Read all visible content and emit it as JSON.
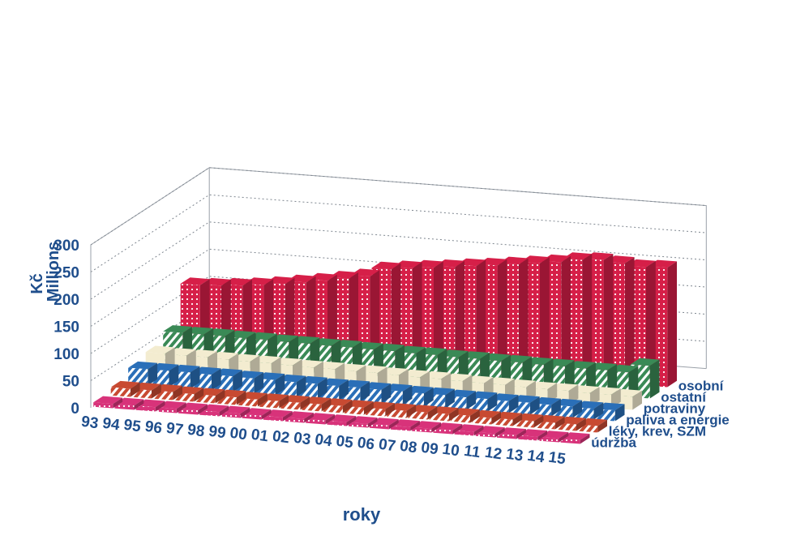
{
  "chart_data": {
    "type": "bar",
    "variant": "3d-stacked-rows",
    "title": "",
    "ylabel": "Kč Millions",
    "ylabel_lines": [
      "Kč",
      "Millions"
    ],
    "xlabel": "roky",
    "ylim": [
      0,
      300
    ],
    "yticks": [
      0,
      50,
      100,
      150,
      200,
      250,
      300
    ],
    "grid": true,
    "categories": [
      "93",
      "94",
      "95",
      "96",
      "97",
      "98",
      "99",
      "00",
      "01",
      "02",
      "03",
      "04",
      "05",
      "06",
      "07",
      "08",
      "09",
      "10",
      "11",
      "12",
      "13",
      "14",
      "15"
    ],
    "series": [
      {
        "name": "údržba",
        "color": "#d8337a",
        "pattern": "dots",
        "values": [
          8,
          8,
          8,
          8,
          8,
          8,
          8,
          7,
          7,
          7,
          7,
          7,
          7,
          7,
          7,
          7,
          7,
          7,
          7,
          7,
          7,
          7,
          7
        ]
      },
      {
        "name": "léky, krev, SZM",
        "color": "#c84a32",
        "pattern": "hatch",
        "values": [
          15,
          15,
          15,
          14,
          14,
          14,
          13,
          13,
          13,
          13,
          13,
          13,
          13,
          13,
          13,
          13,
          13,
          12,
          12,
          12,
          12,
          12,
          12
        ]
      },
      {
        "name": "paliva a energie",
        "color": "#2a6fb8",
        "pattern": "hatch",
        "values": [
          30,
          30,
          30,
          29,
          29,
          28,
          28,
          27,
          27,
          26,
          26,
          25,
          25,
          24,
          24,
          23,
          23,
          22,
          22,
          21,
          21,
          20,
          20
        ]
      },
      {
        "name": "potraviny",
        "color": "#f3ecd0",
        "pattern": "solid",
        "values": [
          38,
          37,
          37,
          36,
          35,
          35,
          34,
          33,
          33,
          32,
          32,
          31,
          30,
          30,
          29,
          28,
          28,
          27,
          26,
          26,
          25,
          25,
          24
        ]
      },
      {
        "name": "ostatní",
        "color": "#3a8a56",
        "pattern": "hatch",
        "values": [
          55,
          55,
          55,
          54,
          54,
          53,
          53,
          52,
          52,
          51,
          51,
          50,
          50,
          49,
          49,
          48,
          48,
          47,
          47,
          46,
          46,
          45,
          60
        ]
      },
      {
        "name": "osobní",
        "color": "#d61f48",
        "pattern": "dots",
        "values": [
          122,
          124,
          127,
          131,
          136,
          142,
          148,
          155,
          162,
          178,
          183,
          187,
          191,
          196,
          200,
          205,
          210,
          215,
          222,
          225,
          222,
          218,
          220
        ]
      }
    ]
  }
}
